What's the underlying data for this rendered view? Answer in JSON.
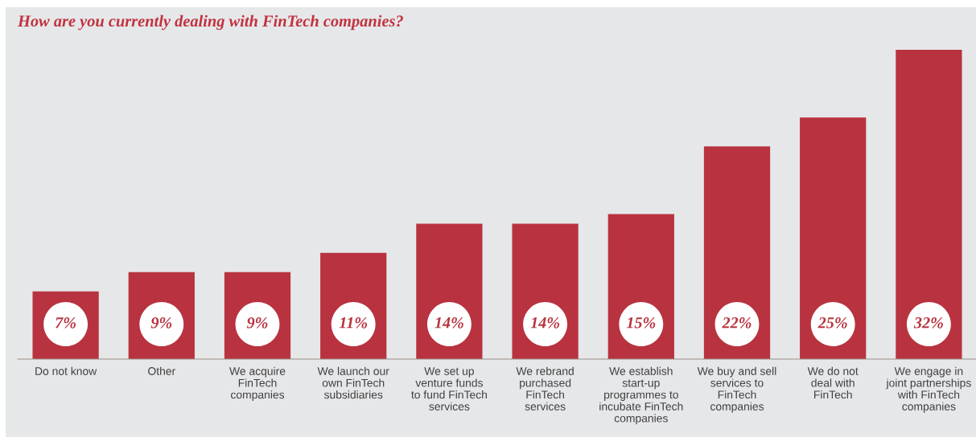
{
  "chart_data": {
    "type": "bar",
    "title": "How are you currently dealing with FinTech companies?",
    "categories": [
      "Do not know",
      "Other",
      "We acquire\nFinTech\ncompanies",
      "We launch our\nown FinTech\nsubsidiaries",
      "We set up\nventure funds\nto fund FinTech\nservices",
      "We rebrand\npurchased\nFinTech\nservices",
      "We establish\nstart-up\nprogrammes to\nincubate FinTech\ncompanies",
      "We buy and sell\nservices to\nFinTech\ncompanies",
      "We do not\ndeal with\nFinTech",
      "We engage in\njoint partnerships\nwith FinTech\ncompanies"
    ],
    "values": [
      7,
      9,
      9,
      11,
      14,
      14,
      15,
      22,
      25,
      32
    ],
    "value_labels": [
      "7%",
      "9%",
      "9%",
      "11%",
      "14%",
      "14%",
      "15%",
      "22%",
      "25%",
      "32%"
    ],
    "color": "#b8333f",
    "grid": false,
    "legend": false
  }
}
